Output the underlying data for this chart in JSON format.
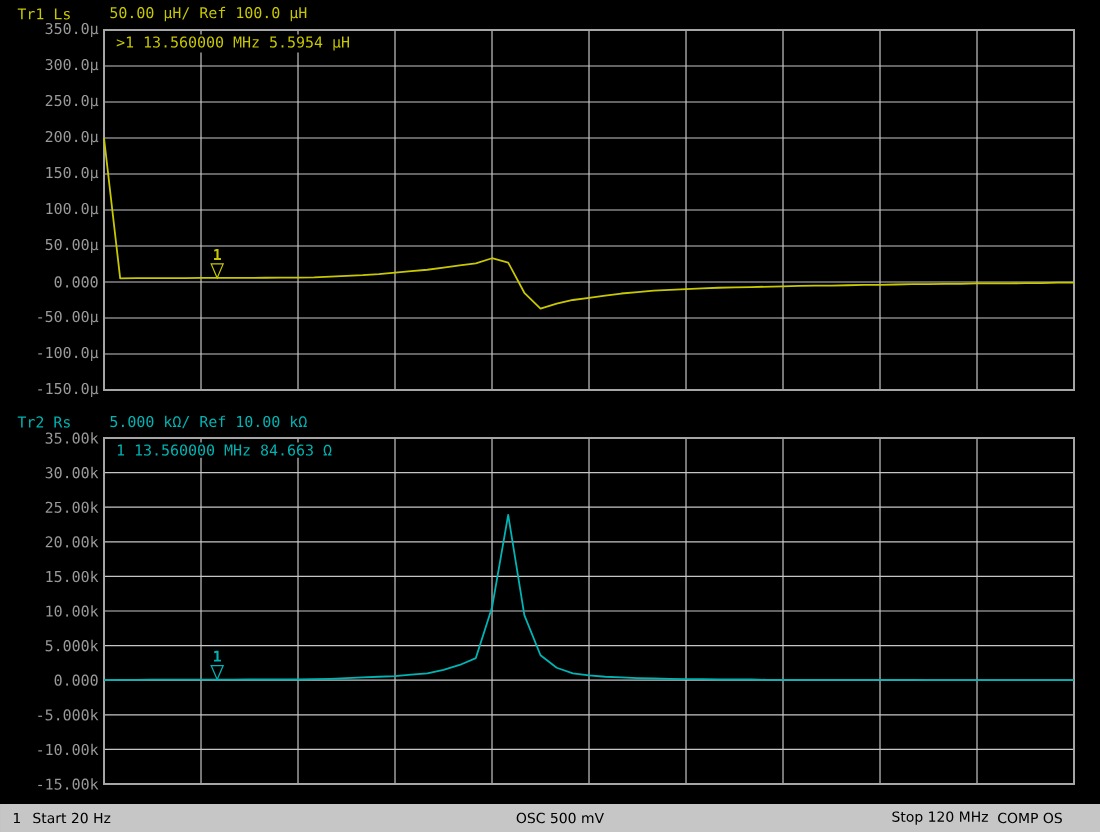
{
  "chart_data": [
    {
      "type": "line",
      "title": "Tr1 Ls",
      "subtitle": "50.00 µH/ Ref 100.0 µH",
      "color": "#c8c800",
      "categories": [
        null,
        null,
        null,
        null,
        null,
        null,
        null,
        null,
        null,
        null,
        null,
        null,
        null,
        null,
        null,
        null,
        null,
        null,
        null,
        null,
        null,
        null,
        null,
        null,
        null,
        null,
        null,
        null,
        null,
        null,
        null,
        null,
        null,
        null,
        null,
        null,
        null,
        null,
        null,
        null,
        null,
        null,
        null,
        null,
        null,
        null,
        null,
        null,
        null,
        null,
        null,
        null,
        null,
        null,
        null,
        null,
        null,
        null,
        null,
        null,
        null
      ],
      "values": [
        200,
        5,
        5.5,
        5.5,
        5.5,
        5.5,
        5.6,
        5.6,
        5.7,
        5.8,
        5.9,
        6,
        6,
        6.5,
        7.5,
        8.5,
        9.5,
        11,
        13,
        15,
        17,
        20,
        23,
        26,
        33,
        27,
        -15,
        -37,
        -30,
        -25,
        -22,
        -19,
        -16,
        -14,
        -12,
        -11,
        -10,
        -9,
        -8,
        -7.5,
        -7,
        -6.5,
        -6,
        -5.5,
        -5,
        -5,
        -4.5,
        -4,
        -4,
        -3.5,
        -3,
        -3,
        -2.5,
        -2.5,
        -2,
        -2,
        -2,
        -1.5,
        -1.5,
        -1,
        -1
      ],
      "ylim": [
        -150,
        350
      ],
      "yticks": [
        {
          "value": 350,
          "label": "350.0µ"
        },
        {
          "value": 300,
          "label": "300.0µ"
        },
        {
          "value": 250,
          "label": "250.0µ"
        },
        {
          "value": 200,
          "label": "200.0µ"
        },
        {
          "value": 150,
          "label": "150.0µ"
        },
        {
          "value": 100,
          "label": "100.0µ"
        },
        {
          "value": 50,
          "label": "50.00µ"
        },
        {
          "value": 0,
          "label": "0.000"
        },
        {
          "value": -50,
          "label": "-50.00µ"
        },
        {
          "value": -100,
          "label": "-100.0µ"
        },
        {
          "value": -150,
          "label": "-150.0µ"
        }
      ],
      "grid": true,
      "tick_labels": "y",
      "annotations": [
        ">1 13.560000 MHz   5.5954 µH",
        "1"
      ]
    },
    {
      "type": "line",
      "title": "Tr2 Rs",
      "subtitle": "5.000 kΩ/ Ref 10.00 kΩ",
      "color": "#00b4b4",
      "categories": [
        null,
        null,
        null,
        null,
        null,
        null,
        null,
        null,
        null,
        null,
        null,
        null,
        null,
        null,
        null,
        null,
        null,
        null,
        null,
        null,
        null,
        null,
        null,
        null,
        null,
        null,
        null,
        null,
        null,
        null,
        null,
        null,
        null,
        null,
        null,
        null,
        null,
        null,
        null,
        null,
        null,
        null,
        null,
        null,
        null,
        null,
        null,
        null,
        null,
        null,
        null,
        null,
        null,
        null,
        null,
        null,
        null,
        null,
        null,
        null,
        null
      ],
      "values": [
        0,
        0.05,
        0.05,
        0.07,
        0.08,
        0.08,
        0.08,
        0.085,
        0.09,
        0.1,
        0.1,
        0.1,
        0.1,
        0.15,
        0.2,
        0.3,
        0.4,
        0.5,
        0.6,
        0.8,
        1,
        1.5,
        2.2,
        3.2,
        10.5,
        23.9,
        9.4,
        3.6,
        1.8,
        1,
        0.7,
        0.5,
        0.4,
        0.3,
        0.25,
        0.2,
        0.15,
        0.15,
        0.1,
        0.1,
        0.1,
        0.05,
        0.05,
        0.05,
        0.05,
        0.05,
        0.05,
        0.05,
        0.05,
        0.05,
        0.05,
        0,
        0,
        0,
        0,
        0,
        0,
        0,
        0,
        0,
        0
      ],
      "ylim": [
        -15,
        35
      ],
      "yticks": [
        {
          "value": 35,
          "label": "35.00k"
        },
        {
          "value": 30,
          "label": "30.00k"
        },
        {
          "value": 25,
          "label": "25.00k"
        },
        {
          "value": 20,
          "label": "20.00k"
        },
        {
          "value": 15,
          "label": "15.00k"
        },
        {
          "value": 10,
          "label": "10.00k"
        },
        {
          "value": 5,
          "label": "5.000k"
        },
        {
          "value": 0,
          "label": "0.000"
        },
        {
          "value": -5,
          "label": "-5.000k"
        },
        {
          "value": -10,
          "label": "-10.00k"
        },
        {
          "value": -15,
          "label": "-15.00k"
        }
      ],
      "grid": true,
      "tick_labels": "y",
      "annotations": [
        "1 13.560000 MHz   84.663 Ω",
        "1",
        "1",
        "Start 20 Hz",
        "OSC 500 mV",
        "Stop 120 MHz",
        "COMP OS"
      ]
    }
  ]
}
